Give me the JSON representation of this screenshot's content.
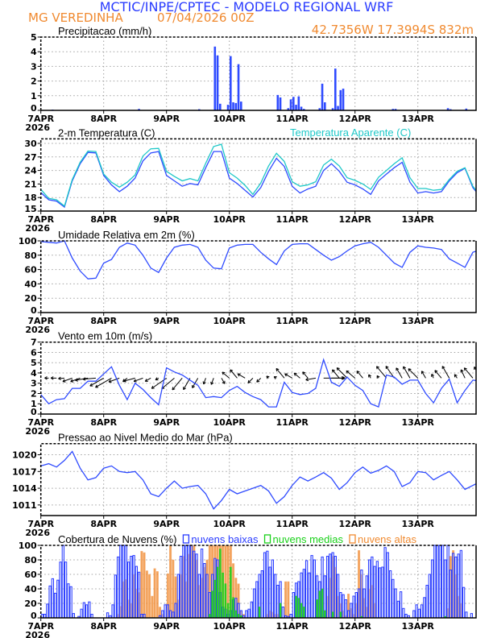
{
  "header": {
    "title": "MCTIC/INPE/CPTEC - MODELO REGIONAL WRF",
    "location": "MG VEREDINHA",
    "datetime": "07/04/2026 00Z",
    "coords": "42.7356W 17.3994S 832m"
  },
  "colors": {
    "title": "#2a3cff",
    "subtitle": "#f08a30",
    "line": "#2f4bff",
    "apparent": "#1ec8c8",
    "low_clouds": "#2a3cff",
    "medium_clouds": "#18d018",
    "high_clouds": "#f08a30",
    "wind_vectors": "#000000"
  },
  "x_axis": {
    "day_labels": [
      "7APR",
      "8APR",
      "9APR",
      "10APR",
      "11APR",
      "12APR",
      "13APR"
    ],
    "year": "2026"
  },
  "chart_data": [
    {
      "type": "bar",
      "title": "Precipitacao (mm/h)",
      "ylim": [
        0,
        5
      ],
      "yticks": [
        "0",
        "1",
        "2",
        "3",
        "4",
        "5"
      ],
      "grid": true,
      "time_step_hours": 1,
      "series": [
        {
          "values": [
            0,
            0,
            0,
            0,
            0.05,
            0,
            0,
            0,
            0,
            0,
            0,
            0,
            0,
            0,
            0,
            0,
            0,
            0,
            0,
            0,
            0,
            0,
            0,
            0,
            0,
            0,
            0,
            0,
            0,
            0,
            0,
            0,
            0,
            0,
            0,
            0,
            0,
            0.1,
            0,
            0,
            0,
            0,
            0,
            0,
            0,
            0,
            0,
            0,
            0,
            0,
            0,
            0,
            0,
            0,
            0,
            0,
            0,
            0,
            0,
            0,
            0.08,
            0,
            0,
            0,
            0,
            0,
            4.35,
            3.75,
            0.45,
            0,
            0,
            0.38,
            3.7,
            0.55,
            0.5,
            3.15,
            0.6,
            0,
            0,
            0,
            0,
            0,
            0,
            0,
            0,
            0,
            0,
            0,
            0,
            0,
            1.05,
            0.88,
            0,
            0,
            0.15,
            0.75,
            0.92,
            0.38,
            0.95,
            0.25,
            0.1,
            0,
            0,
            0,
            0,
            0,
            0.15,
            1.82,
            0.55,
            0,
            0,
            0.15,
            2.85,
            0.3,
            1.38,
            1.48,
            0,
            0,
            0,
            0,
            0,
            0,
            0,
            0,
            0,
            0,
            0,
            0,
            0,
            0,
            0,
            0,
            0,
            0,
            0.1,
            0.1,
            0,
            0,
            0,
            0,
            0,
            0,
            0,
            0,
            0,
            0,
            0,
            0,
            0,
            0,
            0,
            0,
            0,
            0,
            0,
            0.15,
            0.08,
            0,
            0,
            0,
            0,
            0,
            0.12,
            0,
            0,
            0,
            0,
            0
          ]
        }
      ]
    },
    {
      "type": "line",
      "title": "2-m Temperatura (C)",
      "ylim": [
        15,
        31
      ],
      "yticks": [
        "15",
        "18",
        "21",
        "24",
        "27",
        "30"
      ],
      "grid": true,
      "time_step_hours": 3,
      "series": [
        {
          "name": "2-m Temperatura (C)",
          "color": "#2f4bff",
          "values": [
            19.1,
            17.5,
            17.2,
            15.9,
            21.7,
            25.5,
            28.0,
            27.9,
            22.9,
            20.8,
            19.3,
            20.5,
            22.3,
            26.1,
            27.9,
            28.2,
            22.9,
            21.7,
            20.5,
            21.1,
            20.8,
            24.6,
            28.2,
            28.2,
            22.3,
            21.1,
            19.6,
            18.1,
            20.2,
            23.8,
            26.7,
            24.9,
            20.5,
            19.0,
            19.9,
            20.5,
            24.0,
            25.5,
            23.8,
            21.4,
            20.8,
            19.9,
            18.7,
            21.7,
            23.2,
            24.6,
            25.8,
            21.4,
            19.0,
            19.3,
            19.0,
            19.3,
            21.7,
            23.5,
            24.5,
            20.2,
            18.1
          ]
        },
        {
          "name": "Temperatura Aparente (C)",
          "color": "#1ec8c8",
          "values": [
            19.8,
            17.8,
            17.5,
            16.1,
            22.0,
            25.8,
            28.3,
            28.2,
            23.2,
            21.4,
            20.3,
            21.4,
            23.0,
            27.2,
            28.8,
            28.9,
            23.8,
            22.7,
            21.7,
            22.2,
            21.7,
            25.6,
            29.3,
            29.8,
            23.5,
            22.3,
            20.7,
            18.7,
            21.2,
            25.0,
            27.8,
            26.0,
            21.5,
            20.5,
            20.8,
            21.5,
            25.2,
            26.5,
            25.0,
            22.4,
            21.8,
            21.0,
            19.8,
            22.5,
            24.0,
            25.5,
            26.8,
            22.4,
            20.0,
            20.0,
            19.6,
            19.8,
            22.0,
            23.8,
            24.6,
            20.5,
            18.3
          ]
        }
      ]
    },
    {
      "type": "line",
      "title": "Umidade Relativa em 2m (%)",
      "ylim": [
        0,
        100
      ],
      "yticks": [
        "0",
        "20",
        "40",
        "60",
        "80",
        "100"
      ],
      "grid": true,
      "time_step_hours": 3,
      "series": [
        {
          "color": "#2f4bff",
          "values": [
            99,
            98,
            97,
            100,
            76,
            58,
            47,
            48,
            69,
            74,
            91,
            97,
            94,
            80,
            62,
            56,
            76,
            91,
            94,
            95,
            91,
            73,
            62,
            61,
            90,
            94,
            95,
            95,
            84,
            75,
            67,
            86,
            95,
            96,
            96,
            88,
            80,
            73,
            78,
            86,
            93,
            96,
            98,
            91,
            80,
            69,
            63,
            84,
            93,
            91,
            90,
            88,
            75,
            69,
            63,
            84,
            88
          ]
        }
      ]
    },
    {
      "type": "line",
      "title": "Vento em 10m (m/s)",
      "ylim": [
        0,
        7
      ],
      "yticks": [
        "0",
        "1",
        "2",
        "3",
        "4",
        "5",
        "6",
        "7"
      ],
      "grid": true,
      "time_step_hours": 3,
      "series": [
        {
          "name": "speed",
          "color": "#2f4bff",
          "values": [
            1.9,
            1.0,
            1.4,
            1.5,
            2.5,
            2.5,
            3.2,
            3.2,
            3.9,
            4.6,
            2.8,
            1.4,
            3.0,
            2.4,
            1.6,
            0.9,
            4.5,
            4.1,
            3.8,
            3.3,
            2.8,
            1.6,
            1.7,
            1.6,
            2.3,
            2.7,
            2.1,
            1.7,
            1.4,
            0.7,
            0.7,
            3.1,
            2.1,
            1.9,
            2.0,
            2.5,
            5.3,
            3.1,
            2.7,
            3.6,
            2.8,
            2.3,
            1.0,
            0.7,
            3.8,
            3.6,
            2.9,
            3.3,
            3.3,
            2.0,
            1.1,
            2.5,
            3.4,
            1.1,
            2.3,
            3.3,
            3.2
          ]
        }
      ],
      "wind_direction_deg": [
        100,
        90,
        90,
        85,
        70,
        70,
        80,
        85,
        60,
        60,
        70,
        50,
        75,
        70,
        60,
        60,
        55,
        50,
        40,
        30,
        30,
        20,
        20,
        330,
        130,
        140,
        120,
        45,
        45,
        135,
        120,
        140,
        120,
        130,
        140,
        80,
        270,
        270,
        140,
        135,
        130,
        140,
        150,
        150,
        140,
        145,
        150,
        150,
        135,
        150,
        155,
        140,
        150,
        145,
        155,
        140,
        150
      ]
    },
    {
      "type": "line",
      "title": "Pressao ao Nivel Medio do Mar (hPa)",
      "ylim": [
        1009.1,
        1022
      ],
      "yticks": [
        "1011",
        "1014",
        "1017",
        "1020"
      ],
      "grid": true,
      "time_step_hours": 3,
      "series": [
        {
          "color": "#2f4bff",
          "values": [
            1018.0,
            1018.4,
            1017.8,
            1019.0,
            1020.6,
            1017.6,
            1015.5,
            1015.9,
            1017.6,
            1018.0,
            1017.0,
            1016.8,
            1017.0,
            1015.5,
            1013.0,
            1012.5,
            1014.0,
            1015.3,
            1014.0,
            1014.3,
            1014.5,
            1013.0,
            1010.3,
            1011.8,
            1013.8,
            1013.0,
            1013.5,
            1014.0,
            1014.5,
            1013.5,
            1011.3,
            1012.5,
            1014.5,
            1016.0,
            1015.3,
            1016.0,
            1016.8,
            1015.8,
            1013.8,
            1015.0,
            1016.8,
            1017.8,
            1016.7,
            1017.2,
            1018.0,
            1017.0,
            1014.3,
            1015.0,
            1017.0,
            1016.8,
            1015.5,
            1016.3,
            1017.0,
            1015.5,
            1013.8,
            1014.5,
            1015.2
          ]
        }
      ]
    },
    {
      "type": "bar",
      "title": "Cobertura de Nuvens (%)",
      "ylim": [
        0,
        100
      ],
      "yticks": [
        "0",
        "20",
        "40",
        "60",
        "80",
        "100"
      ],
      "grid": true,
      "time_step_hours": 1,
      "legend": "top",
      "series": [
        {
          "name": "nuvens altas",
          "color": "#f08a30",
          "values": [
            0,
            0,
            0,
            0,
            0,
            0,
            0,
            0,
            0,
            0,
            0,
            0,
            0,
            0,
            0,
            0,
            0,
            0,
            0,
            0,
            0,
            0,
            0,
            0,
            0,
            0,
            0,
            0,
            0,
            5,
            16,
            50,
            53,
            25,
            20,
            60,
            40,
            35,
            92,
            90,
            65,
            60,
            30,
            68,
            64,
            15,
            5,
            0,
            61,
            100,
            80,
            57,
            25,
            60,
            85,
            50,
            88,
            100,
            100,
            80,
            45,
            55,
            70,
            80,
            100,
            100,
            100,
            100,
            100,
            100,
            100,
            100,
            100,
            75,
            55,
            47,
            10,
            5,
            0,
            0,
            0,
            0,
            0,
            0,
            0,
            0,
            5,
            10,
            8,
            5,
            5,
            0,
            0,
            50,
            50,
            0,
            0,
            0,
            0,
            0,
            0,
            0,
            0,
            0,
            0,
            0,
            0,
            0,
            0,
            30,
            55,
            85,
            70,
            30,
            20,
            10,
            3,
            33,
            13,
            5,
            20,
            93,
            60,
            27,
            15,
            40,
            45,
            20,
            0,
            0,
            0,
            0,
            0,
            0,
            0,
            0,
            0,
            0,
            0,
            0,
            0,
            0,
            0,
            0,
            0,
            0,
            0,
            0,
            0,
            0,
            0,
            0,
            0,
            0,
            0,
            13,
            85,
            93,
            60,
            30,
            20,
            0,
            0,
            0,
            0,
            0,
            0,
            0
          ]
        },
        {
          "name": "nuvens baixas",
          "color": "#2a3cff",
          "values": [
            5,
            5,
            19,
            44,
            54,
            34,
            52,
            77,
            100,
            77,
            47,
            43,
            6,
            0,
            2,
            12,
            21,
            18,
            22,
            5,
            0,
            0,
            0,
            0,
            0,
            7,
            3,
            18,
            59,
            84,
            100,
            100,
            100,
            77,
            85,
            86,
            71,
            63,
            5,
            5,
            0,
            0,
            0,
            0,
            0,
            3,
            10,
            18,
            18,
            10,
            8,
            20,
            60,
            85,
            100,
            100,
            100,
            100,
            92,
            88,
            60,
            95,
            75,
            60,
            35,
            60,
            82,
            80,
            35,
            15,
            12,
            5,
            10,
            25,
            27,
            20,
            10,
            3,
            10,
            12,
            22,
            40,
            50,
            60,
            65,
            90,
            92,
            70,
            80,
            60,
            45,
            50,
            15,
            3,
            2,
            5,
            35,
            48,
            50,
            62,
            67,
            79,
            62,
            86,
            80,
            58,
            50,
            84,
            58,
            85,
            88,
            90,
            85,
            60,
            35,
            32,
            25,
            10,
            20,
            30,
            35,
            40,
            66,
            40,
            58,
            80,
            84,
            71,
            78,
            69,
            70,
            97,
            90,
            65,
            53,
            40,
            23,
            36,
            13,
            5,
            3,
            0,
            10,
            18,
            12,
            18,
            28,
            45,
            60,
            80,
            100,
            100,
            100,
            100,
            80,
            100,
            66,
            89,
            84,
            88,
            93,
            42,
            8,
            0,
            6,
            0,
            0,
            0
          ]
        },
        {
          "name": "nuvens medias",
          "color": "#18d018",
          "values": [
            0,
            0,
            0,
            0,
            0,
            0,
            0,
            0,
            0,
            0,
            0,
            0,
            0,
            0,
            0,
            0,
            0,
            0,
            0,
            0,
            0,
            0,
            0,
            0,
            0,
            0,
            0,
            0,
            0,
            0,
            0,
            0,
            0,
            0,
            0,
            0,
            0,
            0,
            0,
            0,
            0,
            0,
            0,
            0,
            0,
            0,
            0,
            0,
            0,
            0,
            0,
            0,
            0,
            0,
            0,
            0,
            0,
            0,
            0,
            0,
            0,
            0,
            0,
            0,
            5,
            37,
            52,
            70,
            95,
            62,
            47,
            20,
            70,
            28,
            10,
            5,
            3,
            0,
            0,
            0,
            0,
            0,
            0,
            15,
            0,
            0,
            0,
            0,
            0,
            0,
            0,
            20,
            0,
            0,
            0,
            0,
            0,
            30,
            27,
            20,
            15,
            0,
            0,
            0,
            0,
            25,
            37,
            40,
            10,
            0,
            0,
            8,
            0,
            0,
            8,
            0,
            0,
            0,
            0,
            0,
            0,
            0,
            2,
            0,
            0,
            0,
            0,
            0,
            0,
            0,
            0,
            0,
            0,
            0,
            0,
            0,
            0,
            0,
            0,
            0,
            0,
            0,
            0,
            0,
            0,
            0,
            0,
            0,
            0,
            0,
            0,
            0,
            0,
            0,
            2,
            0,
            0,
            0,
            0,
            0,
            0,
            0,
            0,
            0,
            0,
            0,
            0,
            0
          ]
        }
      ]
    }
  ]
}
